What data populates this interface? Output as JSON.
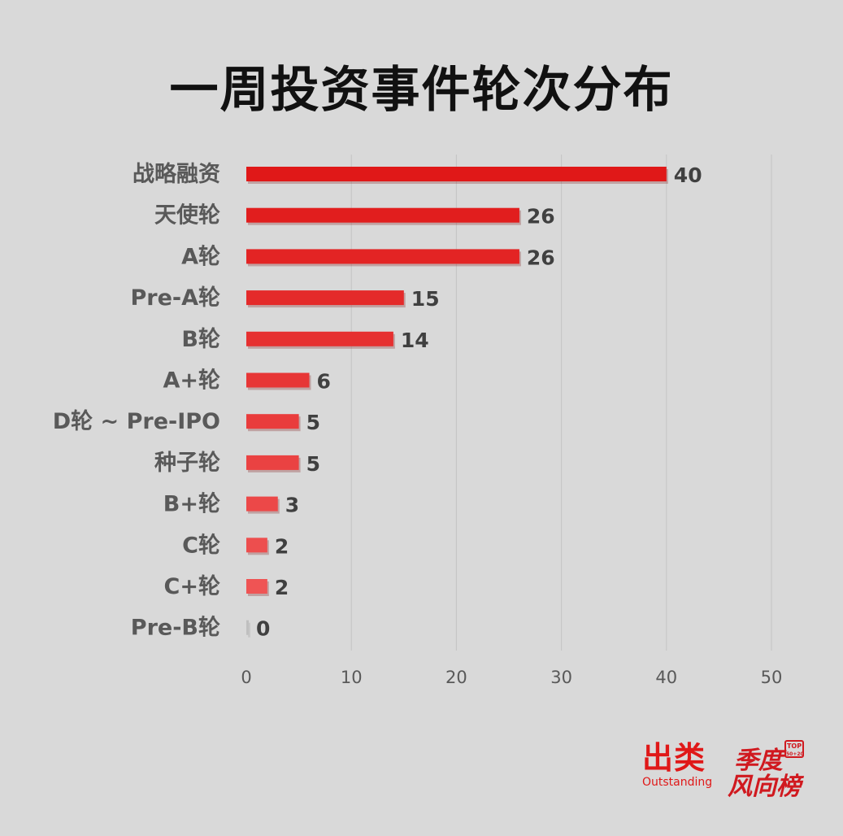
{
  "chart_data": {
    "type": "bar",
    "orientation": "horizontal",
    "title": "一周投资事件轮次分布",
    "categories": [
      "战略融资",
      "天使轮",
      "A轮",
      "Pre-A轮",
      "B轮",
      "A+轮",
      "D轮 ~ Pre-IPO",
      "种子轮",
      "B+轮",
      "C轮",
      "C+轮",
      "Pre-B轮"
    ],
    "values": [
      40,
      26,
      26,
      15,
      14,
      6,
      5,
      5,
      3,
      2,
      2,
      0
    ],
    "xlim": [
      0,
      50
    ],
    "xticks": [
      0,
      10,
      20,
      30,
      40,
      50
    ],
    "grid": true,
    "legend": "none",
    "bar_color": "#e01818"
  },
  "brand": {
    "left_main": "出类",
    "left_sub": "Outstanding",
    "right_line1": "季度",
    "right_line2": "风向榜",
    "badge_top": "TOP",
    "badge_sub": "50+20"
  }
}
